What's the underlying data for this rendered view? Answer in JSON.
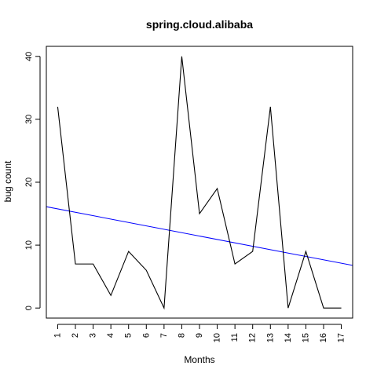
{
  "chart_data": {
    "type": "line",
    "title": "spring.cloud.alibaba",
    "xlabel": "Months",
    "ylabel": "bug count",
    "x": [
      1,
      2,
      3,
      4,
      5,
      6,
      7,
      8,
      9,
      10,
      11,
      12,
      13,
      14,
      15,
      16,
      17
    ],
    "series": [
      {
        "values": [
          32,
          7,
          7,
          2,
          9,
          6,
          0,
          40,
          15,
          19,
          7,
          9,
          32,
          0,
          9,
          0,
          0
        ],
        "color": "#000000"
      }
    ],
    "trend_line": {
      "intercept": 16.3,
      "slope": -0.54,
      "color": "#0000ff"
    },
    "xlim": [
      0.36,
      17.64
    ],
    "ylim": [
      -1.6,
      41.6
    ],
    "x_ticks": [
      "1",
      "2",
      "3",
      "4",
      "5",
      "6",
      "7",
      "8",
      "9",
      "10",
      "11",
      "12",
      "13",
      "14",
      "15",
      "16",
      "17"
    ],
    "y_ticks": [
      "0",
      "10",
      "20",
      "30",
      "40"
    ],
    "grid": false,
    "legend": "none"
  }
}
